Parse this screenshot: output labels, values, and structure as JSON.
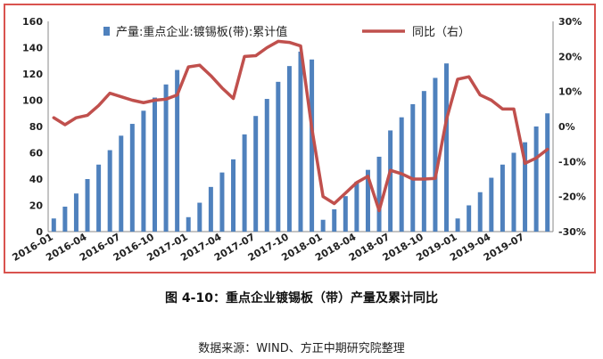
{
  "caption": "图 4-10：重点企业镀锡板（带）产量及累计同比",
  "source": "数据来源：WIND、方正中期研究院整理",
  "colors": {
    "bar": "#4f81bd",
    "line": "#c0504d",
    "frame": "#d9534f"
  },
  "chart_data": {
    "type": "bar+line",
    "x": [
      "2016-01",
      "2016-02",
      "2016-03",
      "2016-04",
      "2016-05",
      "2016-06",
      "2016-07",
      "2016-08",
      "2016-09",
      "2016-10",
      "2016-11",
      "2016-12",
      "2017-01",
      "2017-02",
      "2017-03",
      "2017-04",
      "2017-05",
      "2017-06",
      "2017-07",
      "2017-08",
      "2017-09",
      "2017-10",
      "2017-11",
      "2017-12",
      "2018-01",
      "2018-02",
      "2018-03",
      "2018-04",
      "2018-05",
      "2018-06",
      "2018-07",
      "2018-08",
      "2018-09",
      "2018-10",
      "2018-11",
      "2018-12",
      "2019-01",
      "2019-02",
      "2019-03",
      "2019-04",
      "2019-05",
      "2019-06",
      "2019-07",
      "2019-08",
      "2019-09"
    ],
    "xticks": [
      "2016-01",
      "2016-04",
      "2016-07",
      "2016-10",
      "2017-01",
      "2017-04",
      "2017-07",
      "2017-10",
      "2018-01",
      "2018-04",
      "2018-07",
      "2018-10",
      "2019-01",
      "2019-04",
      "2019-07"
    ],
    "series": [
      {
        "name": "产量:重点企业:镀锡板(带):累计值",
        "type": "bar",
        "axis": "left",
        "values": [
          10,
          19,
          29,
          40,
          51,
          62,
          73,
          82,
          92,
          102,
          112,
          123,
          11,
          22,
          34,
          45,
          55,
          74,
          88,
          101,
          114,
          126,
          137,
          131,
          9,
          17,
          27,
          38,
          47,
          57,
          77,
          87,
          97,
          107,
          117,
          128,
          10,
          20,
          30,
          41,
          51,
          60,
          68,
          80,
          90
        ]
      },
      {
        "name": "同比（右）",
        "type": "line",
        "axis": "right",
        "values": [
          2.5,
          0.5,
          2.5,
          3.2,
          6.0,
          9.5,
          8.5,
          7.5,
          6.8,
          7.5,
          7.8,
          9.0,
          17.0,
          17.5,
          14.5,
          11.0,
          8.0,
          20.0,
          20.2,
          22.5,
          24.3,
          24.0,
          23.0,
          -0.5,
          -20.0,
          -22.0,
          -19.0,
          -16.0,
          -14.2,
          -24.0,
          -12.5,
          -13.5,
          -15.0,
          -15.0,
          -14.8,
          2.0,
          13.5,
          14.2,
          9.0,
          7.5,
          5.0,
          5.0,
          -10.5,
          -9.0,
          -6.5
        ]
      }
    ],
    "yleft": {
      "lim": [
        0,
        160
      ],
      "ticks": [
        "0",
        "20",
        "40",
        "60",
        "80",
        "100",
        "120",
        "140",
        "160"
      ]
    },
    "yright": {
      "lim": [
        -30,
        30
      ],
      "ticks": [
        "-30%",
        "-20%",
        "-10%",
        "0%",
        "10%",
        "20%",
        "30%"
      ]
    },
    "legend_position": "top",
    "grid": false
  }
}
